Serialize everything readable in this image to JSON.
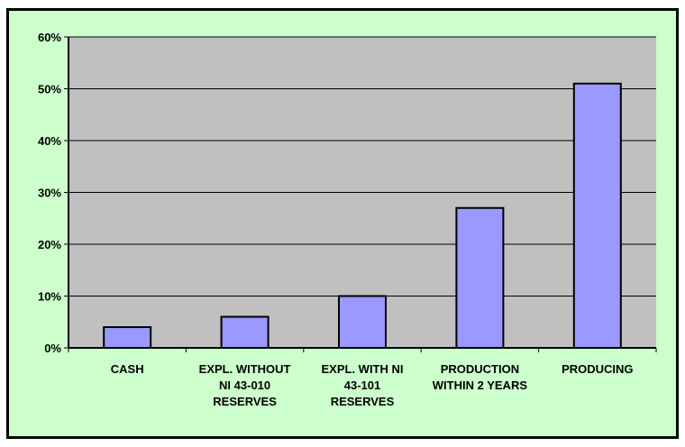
{
  "chart_data": {
    "type": "bar",
    "title": "",
    "xlabel": "",
    "ylabel": "",
    "categories": [
      [
        "CASH"
      ],
      [
        "EXPL. WITHOUT",
        "NI 43-010",
        "RESERVES"
      ],
      [
        "EXPL. WITH NI",
        "43-101",
        "RESERVES"
      ],
      [
        "PRODUCTION",
        "WITHIN 2 YEARS"
      ],
      [
        "PRODUCING"
      ]
    ],
    "values": [
      4,
      6,
      10,
      27,
      51
    ],
    "ylim": [
      0,
      60
    ],
    "yticks": [
      0,
      10,
      20,
      30,
      40,
      50,
      60
    ],
    "ytick_labels": [
      "0%",
      "10%",
      "20%",
      "30%",
      "40%",
      "50%",
      "60%"
    ],
    "grid": "horizontal",
    "legend": "none",
    "colors": {
      "background": "#ccffcc",
      "plot_area": "#c0c0c0",
      "bar_fill": "#9999ff",
      "bar_stroke": "#000000",
      "gridline": "#000000"
    }
  }
}
